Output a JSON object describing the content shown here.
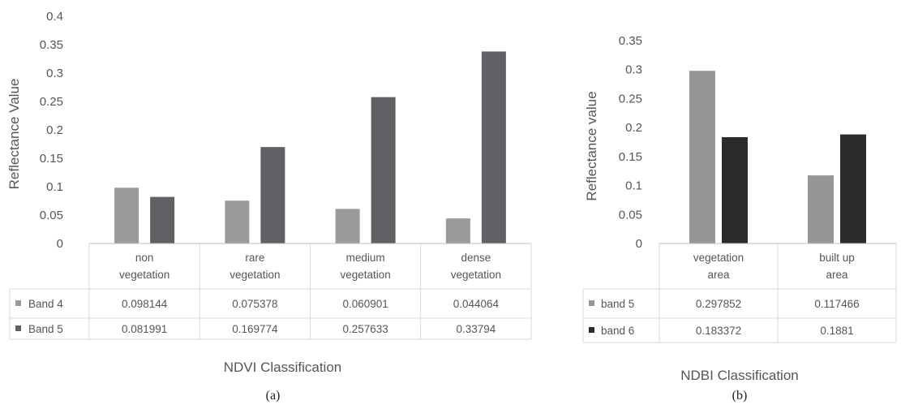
{
  "chart_data": [
    {
      "type": "bar",
      "title": "",
      "panel_label": "(a)",
      "xlabel": "NDVI Classification",
      "ylabel": "Reflectance Value",
      "ylim": [
        0,
        0.4
      ],
      "yticks": [
        "0",
        "0.05",
        "0.1",
        "0.15",
        "0.2",
        "0.25",
        "0.3",
        "0.35",
        "0.4"
      ],
      "categories": [
        [
          "non",
          "vegetation"
        ],
        [
          "rare",
          "vegetation"
        ],
        [
          "medium",
          "vegetation"
        ],
        [
          "dense",
          "vegetation"
        ]
      ],
      "series": [
        {
          "name": "Band 4",
          "color": "#9a9a9a",
          "values": [
            0.098144,
            0.075378,
            0.060901,
            0.044064
          ],
          "labels": [
            "0.098144",
            "0.075378",
            "0.060901",
            "0.044064"
          ]
        },
        {
          "name": "Band 5",
          "color": "#606065",
          "values": [
            0.081991,
            0.169774,
            0.257633,
            0.33794
          ],
          "labels": [
            "0.081991",
            "0.169774",
            "0.257633",
            "0.33794"
          ]
        }
      ],
      "grid": false,
      "legend": "data table"
    },
    {
      "type": "bar",
      "title": "",
      "panel_label": "(b)",
      "xlabel": "NDBI Classification",
      "ylabel": "Reflectance value",
      "ylim": [
        0,
        0.35
      ],
      "yticks": [
        "0",
        "0.05",
        "0.1",
        "0.15",
        "0.2",
        "0.25",
        "0.3",
        "0.35"
      ],
      "categories": [
        [
          "vegetation",
          "area"
        ],
        [
          "built up",
          "area"
        ]
      ],
      "series": [
        {
          "name": "band 5",
          "color": "#969696",
          "values": [
            0.297852,
            0.117466
          ],
          "labels": [
            "0.297852",
            "0.117466"
          ]
        },
        {
          "name": "band 6",
          "color": "#2b2b2b",
          "values": [
            0.183372,
            0.1881
          ],
          "labels": [
            "0.183372",
            "0.1881"
          ]
        }
      ],
      "grid": false,
      "legend": "data table"
    }
  ]
}
